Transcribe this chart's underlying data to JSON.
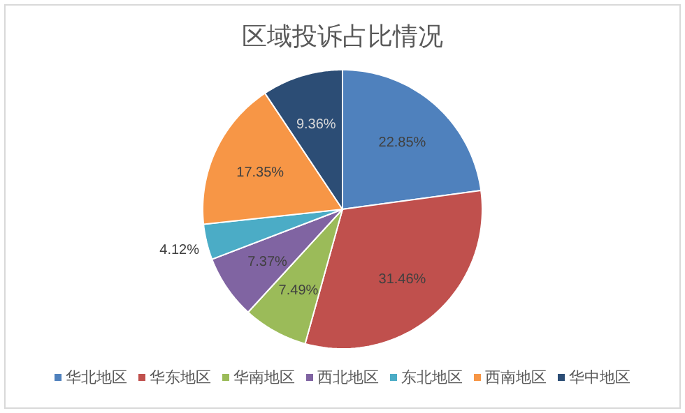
{
  "chart_data": {
    "type": "pie",
    "title": "区域投诉占比情况",
    "categories": [
      "华北地区",
      "华东地区",
      "华南地区",
      "西北地区",
      "东北地区",
      "西南地区",
      "华中地区"
    ],
    "values": [
      22.85,
      31.46,
      7.49,
      7.37,
      4.12,
      17.35,
      9.36
    ],
    "colors": [
      "#4f81bd",
      "#c0504d",
      "#9bbb59",
      "#8064a2",
      "#4bacc6",
      "#f79646",
      "#2c4d75"
    ],
    "value_labels": [
      "22.85%",
      "31.46%",
      "7.49%",
      "7.37%",
      "4.12%",
      "17.35%",
      "9.36%"
    ],
    "data_labels": true,
    "legend": "bottom"
  }
}
